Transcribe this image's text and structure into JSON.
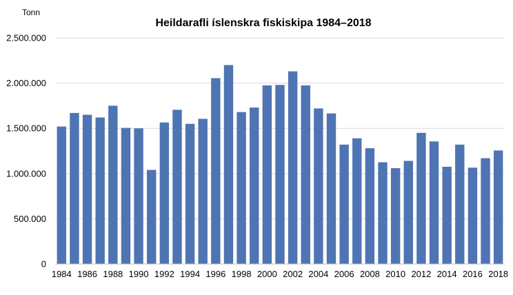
{
  "chart_data": {
    "type": "bar",
    "title": "Heildarafli íslenskra fiskiskipa 1984–2018",
    "ylabel": "Tonn",
    "xlabel": "",
    "ylim": [
      0,
      2500000
    ],
    "yticks": [
      "0",
      "500.000",
      "1.000.000",
      "1.500.000",
      "2.000.000",
      "2.500.000"
    ],
    "ytick_values": [
      0,
      500000,
      1000000,
      1500000,
      2000000,
      2500000
    ],
    "grid": true,
    "bar_color": "#4f74b3",
    "categories": [
      "1984",
      "1985",
      "1986",
      "1987",
      "1988",
      "1989",
      "1990",
      "1991",
      "1992",
      "1993",
      "1994",
      "1995",
      "1996",
      "1997",
      "1998",
      "1999",
      "2000",
      "2001",
      "2002",
      "2003",
      "2004",
      "2005",
      "2006",
      "2007",
      "2008",
      "2009",
      "2010",
      "2011",
      "2012",
      "2013",
      "2014",
      "2015",
      "2016",
      "2017",
      "2018"
    ],
    "xtick_labels": [
      "1984",
      "1986",
      "1988",
      "1990",
      "1992",
      "1994",
      "1996",
      "1998",
      "2000",
      "2002",
      "2004",
      "2006",
      "2008",
      "2010",
      "2012",
      "2014",
      "2016",
      "2018"
    ],
    "values": [
      1520000,
      1670000,
      1650000,
      1620000,
      1750000,
      1505000,
      1500000,
      1040000,
      1565000,
      1705000,
      1550000,
      1605000,
      2055000,
      2200000,
      1680000,
      1730000,
      1975000,
      1980000,
      2130000,
      1975000,
      1720000,
      1665000,
      1320000,
      1390000,
      1280000,
      1125000,
      1060000,
      1140000,
      1450000,
      1355000,
      1075000,
      1320000,
      1065000,
      1170000,
      1255000
    ]
  }
}
